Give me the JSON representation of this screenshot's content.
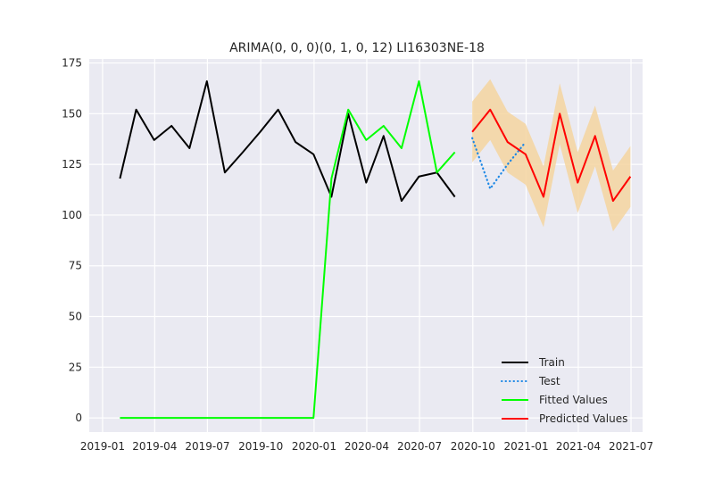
{
  "chart_data": {
    "type": "line",
    "title": "ARIMA(0, 0, 0)(0, 1, 0, 12) LI16303NE-18",
    "xlabel": "",
    "ylabel": "",
    "grid": true,
    "legend_position": "lower-right",
    "x_ticks": [
      "2019-01",
      "2019-04",
      "2019-07",
      "2019-10",
      "2020-01",
      "2020-04",
      "2020-07",
      "2020-10",
      "2021-01",
      "2021-04",
      "2021-07"
    ],
    "y_ticks": [
      0,
      25,
      50,
      75,
      100,
      125,
      150,
      175
    ],
    "xlim": [
      "2018-12-09",
      "2021-07-21"
    ],
    "ylim": [
      -7,
      177
    ],
    "series": [
      {
        "name": "Train",
        "color": "#000000",
        "style": "solid",
        "points": [
          {
            "x": "2019-01-31",
            "y": 118
          },
          {
            "x": "2019-02-28",
            "y": 152
          },
          {
            "x": "2019-03-31",
            "y": 137
          },
          {
            "x": "2019-04-30",
            "y": 144
          },
          {
            "x": "2019-05-31",
            "y": 133
          },
          {
            "x": "2019-06-30",
            "y": 166
          },
          {
            "x": "2019-07-31",
            "y": 121
          },
          {
            "x": "2019-08-31",
            "y": 131
          },
          {
            "x": "2019-09-30",
            "y": 141
          },
          {
            "x": "2019-10-31",
            "y": 152
          },
          {
            "x": "2019-11-30",
            "y": 136
          },
          {
            "x": "2019-12-31",
            "y": 130
          },
          {
            "x": "2020-01-31",
            "y": 109
          },
          {
            "x": "2020-02-29",
            "y": 150
          },
          {
            "x": "2020-03-31",
            "y": 116
          },
          {
            "x": "2020-04-30",
            "y": 139
          },
          {
            "x": "2020-05-31",
            "y": 107
          },
          {
            "x": "2020-06-30",
            "y": 119
          },
          {
            "x": "2020-07-31",
            "y": 121
          },
          {
            "x": "2020-08-31",
            "y": 109
          }
        ]
      },
      {
        "name": "Test",
        "color": "#1e88e5",
        "style": "dotted",
        "points": [
          {
            "x": "2020-09-30",
            "y": 138
          },
          {
            "x": "2020-10-31",
            "y": 113
          },
          {
            "x": "2020-11-30",
            "y": 125
          },
          {
            "x": "2020-12-31",
            "y": 136
          }
        ]
      },
      {
        "name": "Fitted Values",
        "color": "#00ff00",
        "style": "solid",
        "points": [
          {
            "x": "2019-01-31",
            "y": 0
          },
          {
            "x": "2019-02-28",
            "y": 0
          },
          {
            "x": "2019-03-31",
            "y": 0
          },
          {
            "x": "2019-04-30",
            "y": 0
          },
          {
            "x": "2019-05-31",
            "y": 0
          },
          {
            "x": "2019-06-30",
            "y": 0
          },
          {
            "x": "2019-07-31",
            "y": 0
          },
          {
            "x": "2019-08-31",
            "y": 0
          },
          {
            "x": "2019-09-30",
            "y": 0
          },
          {
            "x": "2019-10-31",
            "y": 0
          },
          {
            "x": "2019-11-30",
            "y": 0
          },
          {
            "x": "2019-12-31",
            "y": 0
          },
          {
            "x": "2020-01-31",
            "y": 118
          },
          {
            "x": "2020-02-29",
            "y": 152
          },
          {
            "x": "2020-03-31",
            "y": 137
          },
          {
            "x": "2020-04-30",
            "y": 144
          },
          {
            "x": "2020-05-31",
            "y": 133
          },
          {
            "x": "2020-06-30",
            "y": 166
          },
          {
            "x": "2020-07-31",
            "y": 121
          },
          {
            "x": "2020-08-31",
            "y": 131
          }
        ]
      },
      {
        "name": "Predicted Values",
        "color": "#ff0000",
        "style": "solid",
        "points": [
          {
            "x": "2020-09-30",
            "y": 141
          },
          {
            "x": "2020-10-31",
            "y": 152
          },
          {
            "x": "2020-11-30",
            "y": 136
          },
          {
            "x": "2020-12-31",
            "y": 130
          },
          {
            "x": "2021-01-31",
            "y": 109
          },
          {
            "x": "2021-02-28",
            "y": 150
          },
          {
            "x": "2021-03-31",
            "y": 116
          },
          {
            "x": "2021-04-30",
            "y": 139
          },
          {
            "x": "2021-05-31",
            "y": 107
          },
          {
            "x": "2021-06-30",
            "y": 119
          }
        ]
      }
    ],
    "confidence_band": {
      "color": "#f5d5a0",
      "points": [
        {
          "x": "2020-09-30",
          "lower": 126,
          "upper": 156
        },
        {
          "x": "2020-10-31",
          "lower": 137,
          "upper": 167
        },
        {
          "x": "2020-11-30",
          "lower": 121,
          "upper": 151
        },
        {
          "x": "2020-12-31",
          "lower": 115,
          "upper": 145
        },
        {
          "x": "2021-01-31",
          "lower": 94,
          "upper": 124
        },
        {
          "x": "2021-02-28",
          "lower": 135,
          "upper": 165
        },
        {
          "x": "2021-03-31",
          "lower": 101,
          "upper": 131
        },
        {
          "x": "2021-04-30",
          "lower": 124,
          "upper": 154
        },
        {
          "x": "2021-05-31",
          "lower": 92,
          "upper": 122
        },
        {
          "x": "2021-06-30",
          "lower": 104,
          "upper": 134
        }
      ]
    }
  }
}
